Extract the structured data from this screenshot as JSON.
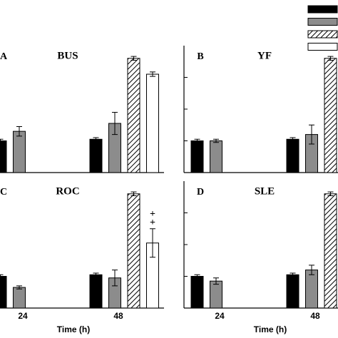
{
  "chart_data": [
    {
      "type": "bar",
      "panel": "A",
      "title": "BUS",
      "categories": [
        null,
        null
      ],
      "series": [
        {
          "color": "#000000",
          "values": [
            1.0,
            1.05
          ],
          "errors": [
            0.05,
            0.05
          ]
        },
        {
          "color": "#8c8c8c",
          "values": [
            1.3,
            1.55
          ],
          "errors": [
            0.15,
            0.35
          ]
        },
        {
          "color": "#ffffff",
          "pattern": "diagonal",
          "values": [
            null,
            3.6
          ],
          "errors": [
            null,
            0.06
          ]
        },
        {
          "color": "#ffffff",
          "values": [
            null,
            3.1
          ],
          "errors": [
            null,
            0.07
          ]
        }
      ],
      "ylim": [
        0,
        4
      ],
      "yticks": [
        1,
        2,
        3
      ]
    },
    {
      "type": "bar",
      "panel": "B",
      "title": "YF",
      "categories": [
        null,
        null
      ],
      "series": [
        {
          "color": "#000000",
          "values": [
            1.0,
            1.05
          ],
          "errors": [
            0.05,
            0.05
          ]
        },
        {
          "color": "#8c8c8c",
          "values": [
            1.0,
            1.2
          ],
          "errors": [
            0.05,
            0.3
          ]
        },
        {
          "color": "#ffffff",
          "pattern": "diagonal",
          "values": [
            null,
            3.6
          ],
          "errors": [
            null,
            0.06
          ]
        },
        {
          "color": "#ffffff",
          "values": [
            null,
            null
          ],
          "errors": [
            null,
            null
          ]
        }
      ],
      "ylim": [
        0,
        4
      ],
      "yticks": [
        1,
        2,
        3
      ]
    },
    {
      "type": "bar",
      "panel": "C",
      "title": "ROC",
      "categories": [
        "24",
        "48"
      ],
      "xlabel": "Time (h)",
      "series": [
        {
          "color": "#000000",
          "values": [
            1.0,
            1.05
          ],
          "errors": [
            0.05,
            0.05
          ]
        },
        {
          "color": "#8c8c8c",
          "values": [
            0.65,
            0.95
          ],
          "errors": [
            0.05,
            0.25
          ]
        },
        {
          "color": "#ffffff",
          "pattern": "diagonal",
          "values": [
            null,
            3.6
          ],
          "errors": [
            null,
            0.06
          ]
        },
        {
          "color": "#ffffff",
          "values": [
            null,
            2.05
          ],
          "errors": [
            null,
            0.45
          ]
        }
      ],
      "annotations": [
        "+",
        "+"
      ],
      "ylim": [
        0,
        4
      ],
      "yticks": [
        1,
        2,
        3
      ]
    },
    {
      "type": "bar",
      "panel": "D",
      "title": "SLE",
      "categories": [
        "24",
        "48"
      ],
      "xlabel": "Time (h)",
      "series": [
        {
          "color": "#000000",
          "values": [
            1.0,
            1.05
          ],
          "errors": [
            0.05,
            0.05
          ]
        },
        {
          "color": "#8c8c8c",
          "values": [
            0.85,
            1.2
          ],
          "errors": [
            0.1,
            0.15
          ]
        },
        {
          "color": "#ffffff",
          "pattern": "diagonal",
          "values": [
            null,
            3.6
          ],
          "errors": [
            null,
            0.06
          ]
        },
        {
          "color": "#ffffff",
          "values": [
            null,
            null
          ],
          "errors": [
            null,
            null
          ]
        }
      ],
      "ylim": [
        0,
        4
      ],
      "yticks": [
        1,
        2,
        3
      ]
    }
  ]
}
